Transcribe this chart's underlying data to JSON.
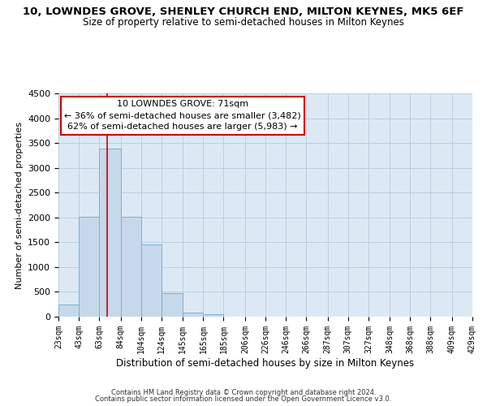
{
  "title": "10, LOWNDES GROVE, SHENLEY CHURCH END, MILTON KEYNES, MK5 6EF",
  "subtitle": "Size of property relative to semi-detached houses in Milton Keynes",
  "xlabel": "Distribution of semi-detached houses by size in Milton Keynes",
  "ylabel": "Number of semi-detached properties",
  "footer_line1": "Contains HM Land Registry data © Crown copyright and database right 2024.",
  "footer_line2": "Contains public sector information licensed under the Open Government Licence v3.0.",
  "bin_edges": [
    23,
    43,
    63,
    84,
    104,
    124,
    145,
    165,
    185,
    206,
    226,
    246,
    266,
    287,
    307,
    327,
    348,
    368,
    388,
    409,
    429
  ],
  "bar_heights": [
    250,
    2020,
    3380,
    2020,
    1460,
    470,
    90,
    50,
    0,
    0,
    0,
    0,
    0,
    0,
    0,
    0,
    0,
    0,
    0,
    0
  ],
  "bar_color": "#c6d9ec",
  "bar_edge_color": "#7bafd4",
  "vline_x": 71,
  "vline_color": "#cc0000",
  "ylim": [
    0,
    4500
  ],
  "annotation_line1": "10 LOWNDES GROVE: 71sqm",
  "annotation_line2": "← 36% of semi-detached houses are smaller (3,482)",
  "annotation_line3": "62% of semi-detached houses are larger (5,983) →",
  "annotation_box_color": "#ffffff",
  "annotation_border_color": "#cc0000",
  "background_color": "#ffffff",
  "plot_bg_color": "#dce9f5",
  "grid_color": "#b8cfe0",
  "title_fontsize": 9.5,
  "subtitle_fontsize": 8.5,
  "ylabel_fontsize": 8,
  "xlabel_fontsize": 8.5,
  "tick_fontsize": 7,
  "ytick_fontsize": 8,
  "footer_fontsize": 6,
  "ann_fontsize": 8,
  "tick_labels": [
    "23sqm",
    "43sqm",
    "63sqm",
    "84sqm",
    "104sqm",
    "124sqm",
    "145sqm",
    "165sqm",
    "185sqm",
    "206sqm",
    "226sqm",
    "246sqm",
    "266sqm",
    "287sqm",
    "307sqm",
    "327sqm",
    "348sqm",
    "368sqm",
    "388sqm",
    "409sqm",
    "429sqm"
  ]
}
